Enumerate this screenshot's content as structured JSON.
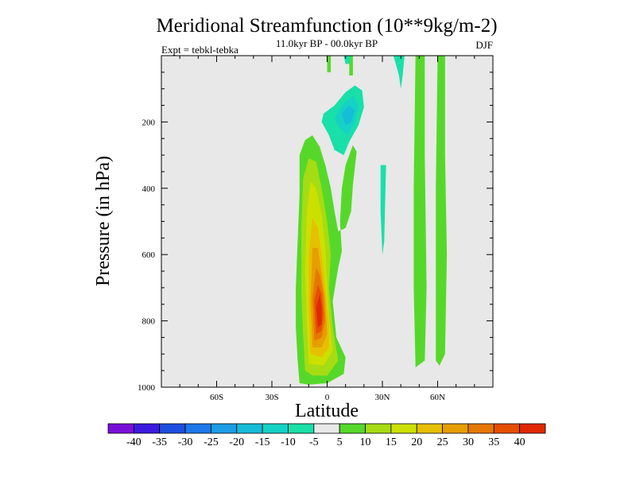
{
  "chart_data": {
    "type": "heatmap",
    "title": "Meridional Streamfunction (10**9kg/m-2)",
    "subtitle": "11.0kyr BP - 00.0kyr BP",
    "left_label": "Expt = tebkl-tebka",
    "right_label": "DJF",
    "xlabel": "Latitude",
    "ylabel": "Pressure (in hPa)",
    "xlim": [
      -90,
      90
    ],
    "ylim": [
      1000,
      0
    ],
    "x_ticks": [
      {
        "value": -60,
        "label": "60S"
      },
      {
        "value": -30,
        "label": "30S"
      },
      {
        "value": 0,
        "label": "0"
      },
      {
        "value": 30,
        "label": "30N"
      },
      {
        "value": 60,
        "label": "60N"
      }
    ],
    "y_ticks": [
      {
        "value": 200,
        "label": "200"
      },
      {
        "value": 400,
        "label": "400"
      },
      {
        "value": 600,
        "label": "600"
      },
      {
        "value": 800,
        "label": "800"
      },
      {
        "value": 1000,
        "label": "1000"
      }
    ],
    "colorbar": {
      "labels": [
        "-40",
        "-35",
        "-30",
        "-25",
        "-20",
        "-15",
        "-10",
        "-5",
        "5",
        "10",
        "15",
        "20",
        "25",
        "30",
        "35",
        "40"
      ],
      "colors": [
        "#7a10d8",
        "#3b1be0",
        "#1f4fe0",
        "#1e78e8",
        "#1c9ee6",
        "#16bcd8",
        "#14d2c6",
        "#18e0a8",
        "#e8e8e8",
        "#56d82a",
        "#a6dc14",
        "#cce000",
        "#e6c000",
        "#e69e00",
        "#e67800",
        "#e64e00",
        "#e02800"
      ]
    },
    "contours": [
      {
        "level": 5,
        "color": "#56d82a",
        "regions": [
          {
            "name": "main-cell",
            "points": [
              [
                -15,
                988
              ],
              [
                -16,
                920
              ],
              [
                -17,
                820
              ],
              [
                -17,
                700
              ],
              [
                -16,
                560
              ],
              [
                -15,
                420
              ],
              [
                -15,
                300
              ],
              [
                -12,
                255
              ],
              [
                -8,
                240
              ],
              [
                -4,
                275
              ],
              [
                -1,
                330
              ],
              [
                2,
                400
              ],
              [
                4,
                470
              ],
              [
                6,
                530
              ],
              [
                10,
                520
              ],
              [
                13,
                470
              ],
              [
                14,
                390
              ],
              [
                16,
                290
              ],
              [
                14,
                270
              ],
              [
                10,
                330
              ],
              [
                8,
                400
              ],
              [
                7,
                500
              ],
              [
                8,
                590
              ],
              [
                6,
                640
              ],
              [
                3,
                740
              ],
              [
                5,
                850
              ],
              [
                10,
                910
              ],
              [
                9,
                960
              ],
              [
                0,
                988
              ],
              [
                -10,
                992
              ]
            ]
          },
          {
            "name": "nh-upper-strip",
            "points": [
              [
                0,
                0
              ],
              [
                2,
                0
              ],
              [
                2,
                50
              ],
              [
                0,
                50
              ]
            ]
          },
          {
            "name": "tropics-upper-strip",
            "points": [
              [
                12,
                0
              ],
              [
                14,
                0
              ],
              [
                14,
                60
              ],
              [
                12,
                60
              ]
            ]
          },
          {
            "name": "subtropics-strip",
            "points": [
              [
                48,
                0
              ],
              [
                53,
                0
              ],
              [
                53,
                300
              ],
              [
                54,
                700
              ],
              [
                53,
                920
              ],
              [
                48,
                940
              ],
              [
                47,
                700
              ],
              [
                47,
                400
              ]
            ]
          },
          {
            "name": "midlat-strip",
            "points": [
              [
                60,
                0
              ],
              [
                64,
                0
              ],
              [
                64,
                300
              ],
              [
                65,
                600
              ],
              [
                64,
                900
              ],
              [
                61,
                935
              ],
              [
                59,
                920
              ],
              [
                59,
                400
              ]
            ]
          }
        ]
      },
      {
        "level": 10,
        "color": "#a6dc14",
        "regions": [
          {
            "name": "main-core",
            "points": [
              [
                -12,
                950
              ],
              [
                -13,
                850
              ],
              [
                -14,
                720
              ],
              [
                -14,
                520
              ],
              [
                -13,
                370
              ],
              [
                -10,
                310
              ],
              [
                -6,
                320
              ],
              [
                -3,
                400
              ],
              [
                0,
                500
              ],
              [
                2,
                600
              ],
              [
                1,
                700
              ],
              [
                3,
                820
              ],
              [
                6,
                920
              ],
              [
                0,
                965
              ],
              [
                -8,
                965
              ]
            ]
          }
        ]
      },
      {
        "level": 15,
        "color": "#cce000",
        "regions": [
          {
            "name": "main-core",
            "points": [
              [
                -10,
                930
              ],
              [
                -11,
                800
              ],
              [
                -12,
                650
              ],
              [
                -11,
                470
              ],
              [
                -9,
                380
              ],
              [
                -6,
                400
              ],
              [
                -3,
                480
              ],
              [
                -1,
                580
              ],
              [
                0,
                680
              ],
              [
                1,
                790
              ],
              [
                3,
                890
              ],
              [
                -2,
                935
              ]
            ]
          }
        ]
      },
      {
        "level": 20,
        "color": "#e6c000",
        "regions": [
          {
            "name": "main-core",
            "points": [
              [
                -9,
                900
              ],
              [
                -10,
                760
              ],
              [
                -10,
                600
              ],
              [
                -8,
                490
              ],
              [
                -5,
                520
              ],
              [
                -3,
                600
              ],
              [
                -1,
                700
              ],
              [
                1,
                810
              ],
              [
                1,
                880
              ],
              [
                -3,
                910
              ]
            ]
          }
        ]
      },
      {
        "level": 25,
        "color": "#e69e00",
        "regions": [
          {
            "name": "main-core",
            "points": [
              [
                -8,
                880
              ],
              [
                -9,
                740
              ],
              [
                -8,
                580
              ],
              [
                -5,
                580
              ],
              [
                -3,
                660
              ],
              [
                -1,
                740
              ],
              [
                0,
                840
              ],
              [
                -3,
                880
              ]
            ]
          }
        ]
      },
      {
        "level": 30,
        "color": "#e67800",
        "regions": [
          {
            "name": "main-core",
            "points": [
              [
                -7,
                860
              ],
              [
                -8,
                730
              ],
              [
                -6,
                640
              ],
              [
                -4,
                660
              ],
              [
                -2,
                720
              ],
              [
                -1,
                800
              ],
              [
                -3,
                850
              ]
            ]
          }
        ]
      },
      {
        "level": 35,
        "color": "#e64e00",
        "regions": [
          {
            "name": "main-core",
            "points": [
              [
                -6,
                840
              ],
              [
                -7,
                740
              ],
              [
                -5,
                690
              ],
              [
                -3,
                720
              ],
              [
                -2,
                780
              ],
              [
                -3,
                830
              ]
            ]
          }
        ]
      },
      {
        "level": 40,
        "color": "#e02800",
        "regions": [
          {
            "name": "main-core",
            "points": [
              [
                -5,
                820
              ],
              [
                -6,
                760
              ],
              [
                -4,
                720
              ],
              [
                -3,
                760
              ],
              [
                -3,
                810
              ]
            ]
          }
        ]
      },
      {
        "level": -5,
        "color": "#18e0a8",
        "regions": [
          {
            "name": "upper-eq-cell",
            "points": [
              [
                -3,
                200
              ],
              [
                -2,
                175
              ],
              [
                4,
                150
              ],
              [
                10,
                110
              ],
              [
                15,
                90
              ],
              [
                19,
                105
              ],
              [
                20,
                155
              ],
              [
                17,
                210
              ],
              [
                12,
                260
              ],
              [
                9,
                300
              ],
              [
                4,
                285
              ],
              [
                1,
                240
              ]
            ]
          },
          {
            "name": "upper-tropics-strip",
            "points": [
              [
                9,
                0
              ],
              [
                13,
                0
              ],
              [
                12,
                25
              ],
              [
                10,
                25
              ]
            ]
          },
          {
            "name": "nh-subtropics-strip",
            "points": [
              [
                36,
                0
              ],
              [
                42,
                0
              ],
              [
                41,
                60
              ],
              [
                40,
                100
              ],
              [
                39,
                60
              ]
            ]
          },
          {
            "name": "nh-30n-strip",
            "points": [
              [
                29,
                330
              ],
              [
                32,
                330
              ],
              [
                31,
                560
              ],
              [
                30,
                600
              ],
              [
                29,
                470
              ]
            ]
          }
        ]
      },
      {
        "level": -10,
        "color": "#14d2c6",
        "regions": [
          {
            "name": "upper-eq-core",
            "points": [
              [
                4,
                190
              ],
              [
                8,
                150
              ],
              [
                14,
                120
              ],
              [
                17,
                150
              ],
              [
                15,
                200
              ],
              [
                11,
                240
              ],
              [
                7,
                220
              ]
            ]
          }
        ]
      },
      {
        "level": -15,
        "color": "#16bcd8",
        "regions": [
          {
            "name": "upper-eq-inner",
            "points": [
              [
                8,
                175
              ],
              [
                12,
                150
              ],
              [
                15,
                165
              ],
              [
                13,
                200
              ],
              [
                10,
                210
              ]
            ]
          }
        ]
      }
    ]
  }
}
